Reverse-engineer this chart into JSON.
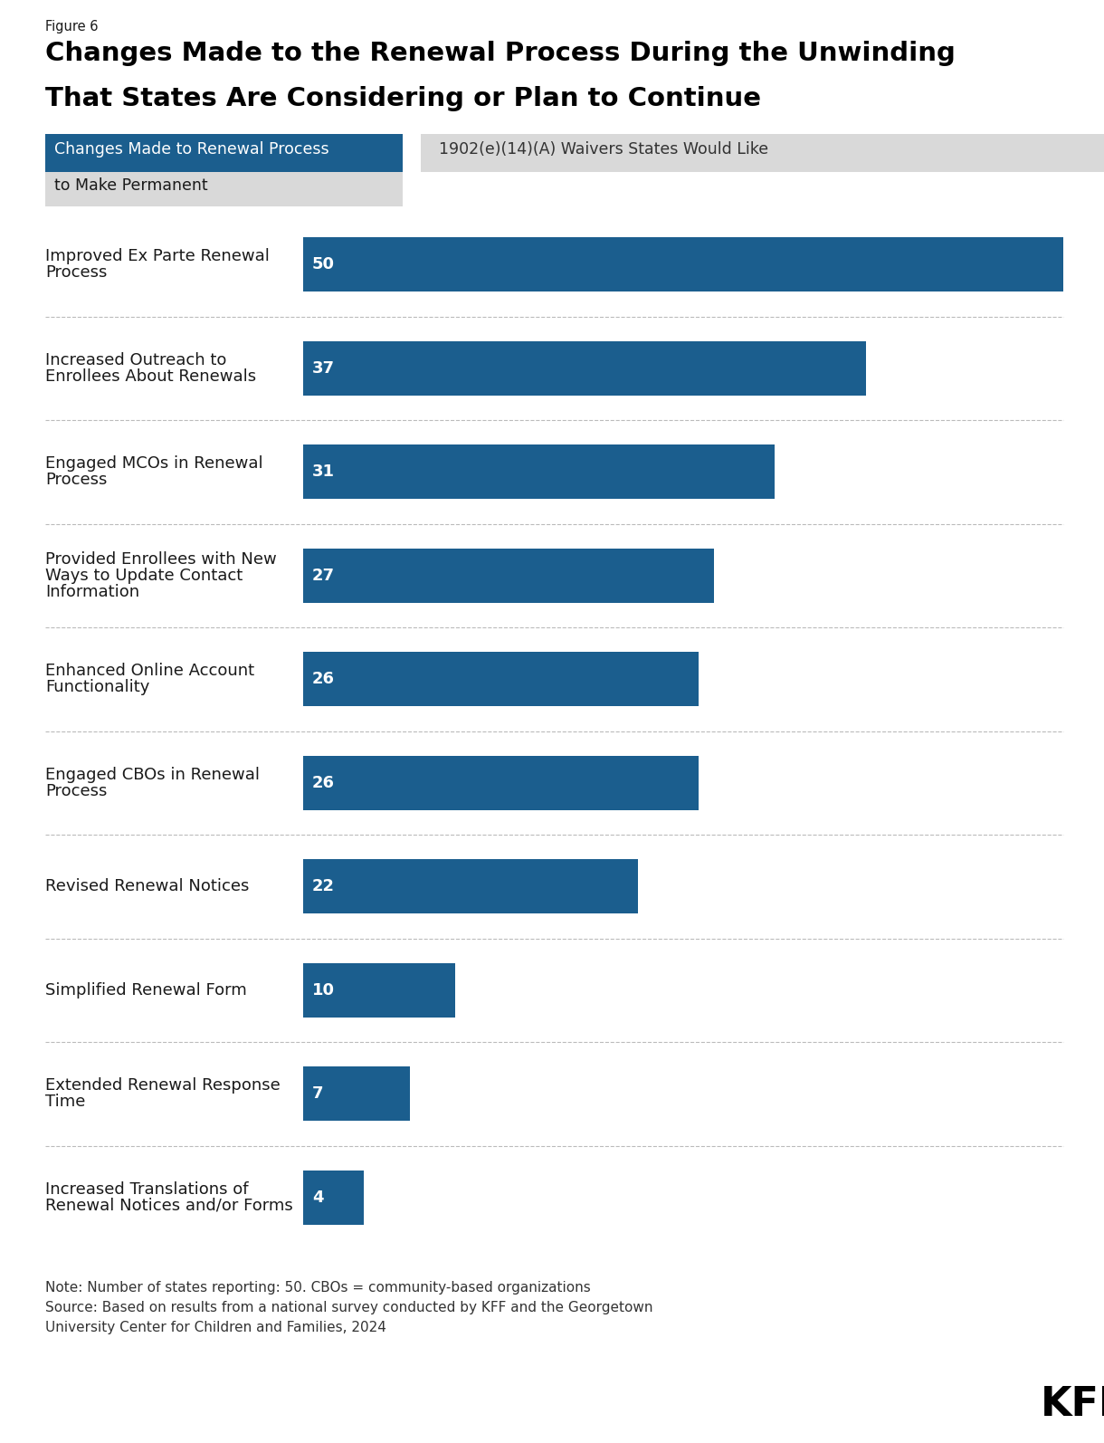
{
  "figure_label": "Figure 6",
  "title_line1": "Changes Made to the Renewal Process During the Unwinding",
  "title_line2": "That States Are Considering or Plan to Continue",
  "tab1_line1": "Changes Made to Renewal Process",
  "tab1_line2": "to Make Permanent",
  "tab2_label": "1902(e)(14)(A) Waivers States Would Like",
  "tab1_color": "#1b5e8e",
  "tab2_color": "#d9d9d9",
  "tab1_text_color": "#ffffff",
  "tab2_text_color": "#333333",
  "bar_color": "#1b5e8e",
  "categories": [
    "Improved Ex Parte Renewal\nProcess",
    "Increased Outreach to\nEnrollees About Renewals",
    "Engaged MCOs in Renewal\nProcess",
    "Provided Enrollees with New\nWays to Update Contact\nInformation",
    "Enhanced Online Account\nFunctionality",
    "Engaged CBOs in Renewal\nProcess",
    "Revised Renewal Notices",
    "Simplified Renewal Form",
    "Extended Renewal Response\nTime",
    "Increased Translations of\nRenewal Notices and/or Forms"
  ],
  "values": [
    50,
    37,
    31,
    27,
    26,
    26,
    22,
    10,
    7,
    4
  ],
  "max_value": 50,
  "note_line1": "Note: Number of states reporting: 50. CBOs = community-based organizations",
  "note_line2": "Source: Based on results from a national survey conducted by KFF and the Georgetown",
  "note_line3": "University Center for Children and Families, 2024",
  "background_color": "#ffffff",
  "text_color": "#1a1a1a",
  "divider_color": "#bbbbbb",
  "title_fontsize": 21,
  "label_fontsize": 13,
  "value_fontsize": 13,
  "note_fontsize": 11,
  "tab_fontsize": 12.5,
  "fig_label_fontsize": 10.5
}
